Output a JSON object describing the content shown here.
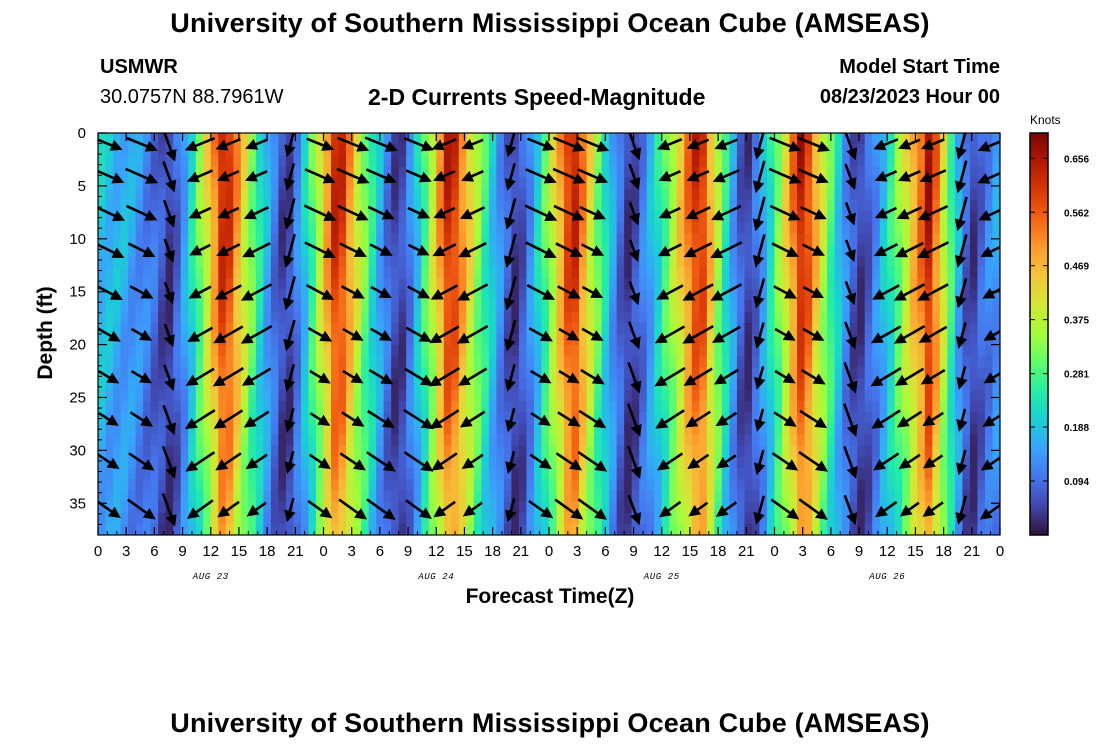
{
  "header": {
    "title": "University of Southern Mississippi Ocean Cube (AMSEAS)",
    "station_name": "USMWR",
    "station_coords": "30.0757N  88.7961W",
    "plot_title": "2-D Currents Speed-Magnitude",
    "model_start_label": "Model Start Time",
    "model_start_time": "08/23/2023 Hour 00"
  },
  "footer": {
    "title": "University of Southern Mississippi Ocean Cube (AMSEAS)"
  },
  "colors": {
    "colormap": [
      "#30123b",
      "#4145ab",
      "#4675ed",
      "#39a2fc",
      "#1bcfd4",
      "#24eca6",
      "#61fc6c",
      "#a4fc3b",
      "#d1e834",
      "#f3c63a",
      "#fe9b2d",
      "#f36315",
      "#d93806",
      "#b11901",
      "#7a0402"
    ],
    "arrow": "#000000"
  },
  "chart_data": {
    "type": "heatmap",
    "title": "2-D Currents Speed-Magnitude",
    "xlabel": "Forecast Time(Z)",
    "ylabel": "Depth (ft)",
    "colorbar_label": "Knots",
    "x_unit": "hours since 08/23/2023 00Z",
    "xlim": [
      0,
      96
    ],
    "ylim": [
      0,
      38
    ],
    "y_inverted": true,
    "x_ticks": [
      0,
      3,
      6,
      9,
      12,
      15,
      18,
      21,
      24,
      27,
      30,
      33,
      36,
      39,
      42,
      45,
      48,
      51,
      54,
      57,
      60,
      63,
      66,
      69,
      72,
      75,
      78,
      81,
      84,
      87,
      90,
      93,
      96
    ],
    "x_tick_labels": [
      "0",
      "3",
      "6",
      "9",
      "12",
      "15",
      "18",
      "21",
      "0",
      "3",
      "6",
      "9",
      "12",
      "15",
      "18",
      "21",
      "0",
      "3",
      "6",
      "9",
      "12",
      "15",
      "18",
      "21",
      "0",
      "3",
      "6",
      "9",
      "12",
      "15",
      "18",
      "21",
      "0"
    ],
    "y_ticks": [
      0,
      5,
      10,
      15,
      20,
      25,
      30,
      35
    ],
    "y_tick_labels": [
      "0",
      "5",
      "10",
      "15",
      "20",
      "25",
      "30",
      "35"
    ],
    "day_labels": [
      {
        "hour": 12,
        "label": "AUG 23"
      },
      {
        "hour": 36,
        "label": "AUG 24"
      },
      {
        "hour": 60,
        "label": "AUG 25"
      },
      {
        "hour": 84,
        "label": "AUG 26"
      }
    ],
    "colorbar": {
      "min": 0.0,
      "max": 0.7,
      "ticks": [
        0.094,
        0.188,
        0.281,
        0.375,
        0.469,
        0.562,
        0.656
      ]
    },
    "speed_maxima_hours": [
      13.5,
      25.5,
      37.5,
      50.5,
      64,
      75,
      88.5
    ],
    "speed_minima_hours": [
      7.5,
      20,
      32,
      44.5,
      56.5,
      69,
      81,
      93
    ],
    "arrow_columns_hours": [
      1,
      4.5,
      7.5,
      11,
      14,
      17,
      20.5,
      23.5,
      27,
      30,
      34,
      37,
      40,
      44,
      47,
      50,
      52.5,
      57,
      61,
      64,
      67,
      70.5,
      73,
      76,
      80,
      84,
      86.5,
      89,
      92,
      95.5
    ],
    "arrow_rows_depth_ft": [
      1,
      4,
      7.5,
      11,
      15,
      19,
      23,
      27,
      31,
      35.5
    ]
  }
}
